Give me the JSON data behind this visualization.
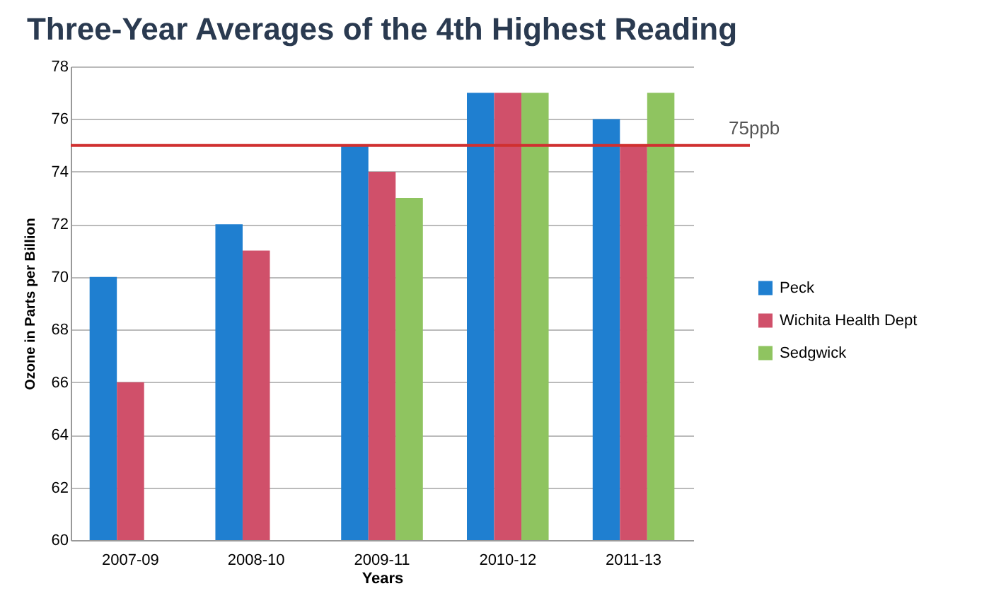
{
  "chart_data": {
    "type": "bar",
    "title": "Three-Year Averages of the 4th Highest Reading",
    "xlabel": "Years",
    "ylabel": "Ozone in Parts per Billion",
    "categories": [
      "2007-09",
      "2008-10",
      "2009-11",
      "2010-12",
      "2011-13"
    ],
    "series": [
      {
        "name": "Peck",
        "color": "#1f7fd0",
        "values": [
          70,
          72,
          75,
          77,
          76
        ]
      },
      {
        "name": "Wichita Health Dept",
        "color": "#d0506a",
        "values": [
          66,
          71,
          74,
          77,
          75
        ]
      },
      {
        "name": "Sedgwick",
        "color": "#8fc460",
        "values": [
          null,
          null,
          73,
          77,
          77
        ]
      }
    ],
    "ylim": [
      60,
      78
    ],
    "yticks": [
      60,
      62,
      64,
      66,
      68,
      70,
      72,
      74,
      76,
      78
    ],
    "grid": "y",
    "legend": "right",
    "ref_lines": [
      {
        "axis": "y",
        "value": 75,
        "label": "75ppb",
        "color": "#d03030"
      }
    ]
  }
}
